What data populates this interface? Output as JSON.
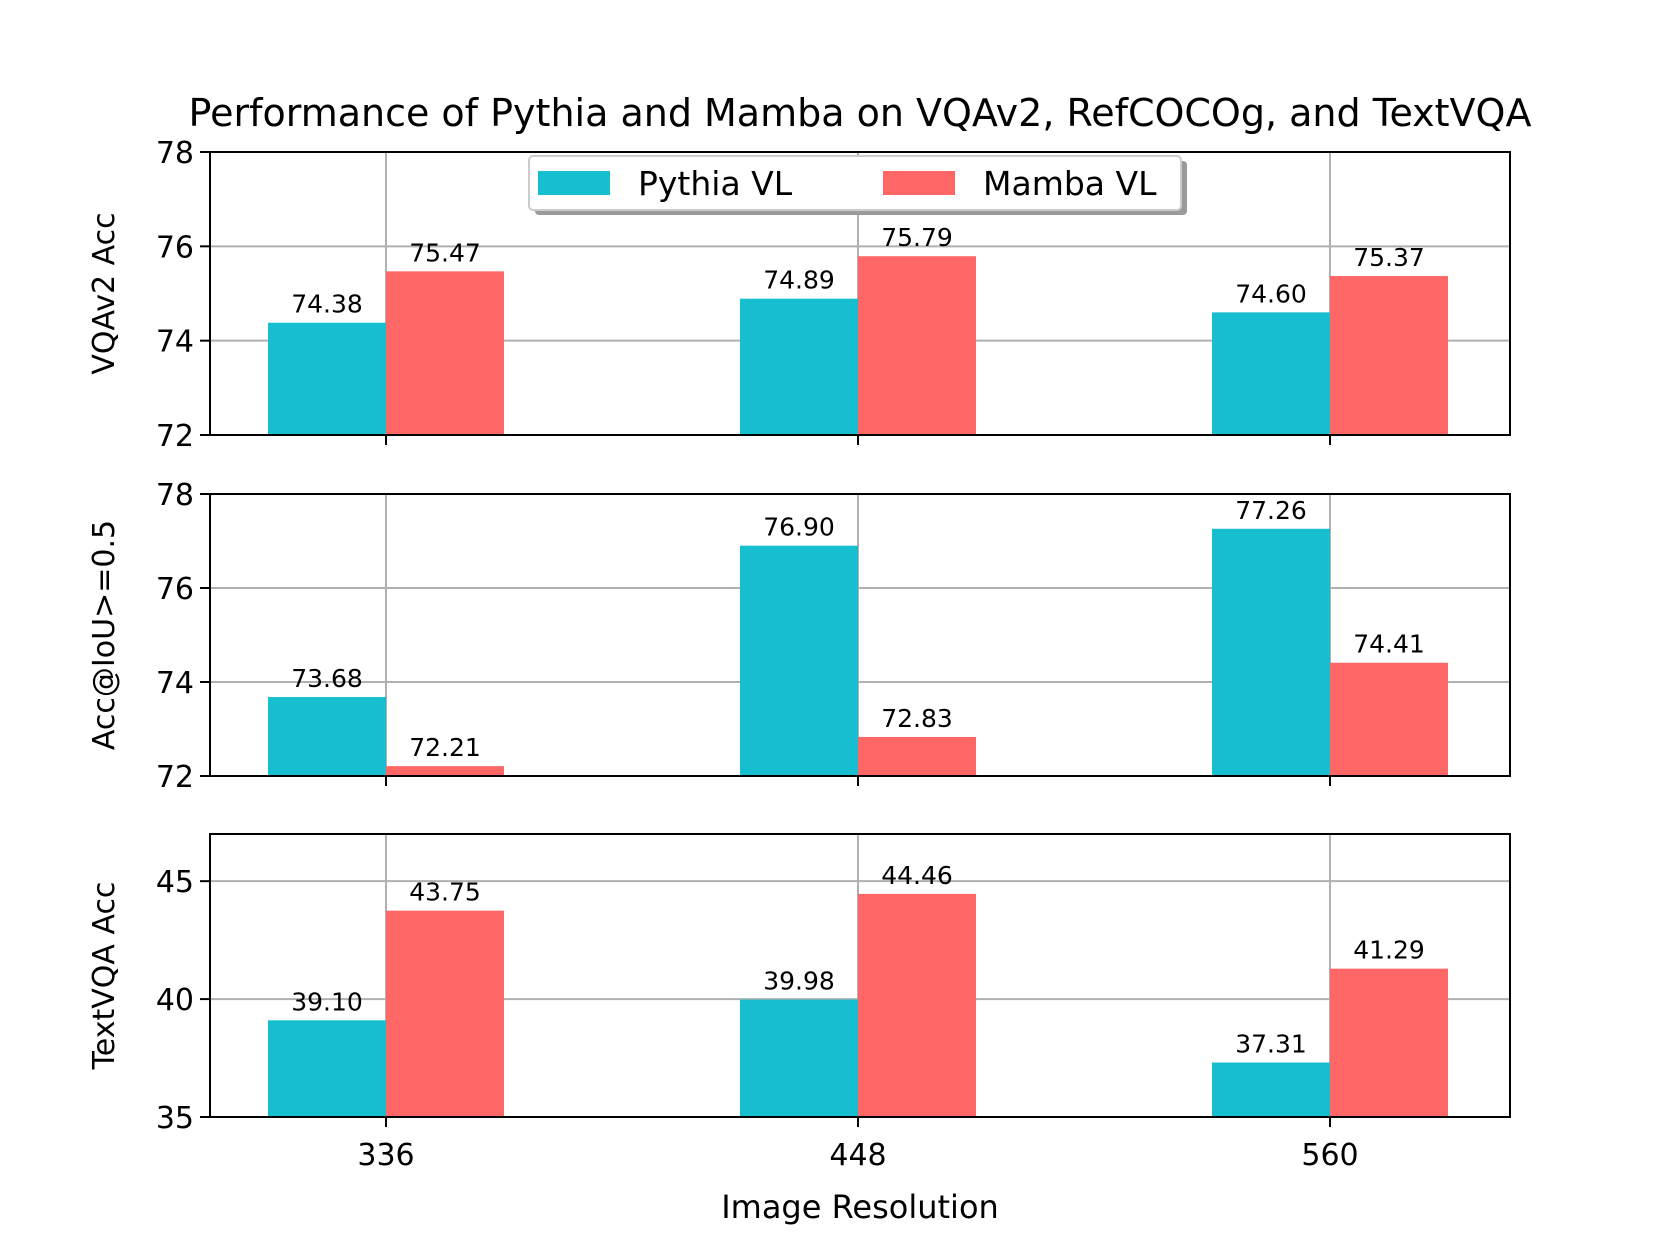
{
  "chart_data": {
    "type": "bar",
    "title": "Performance of Pythia and Mamba on VQAv2, RefCOCOg, and TextVQA",
    "xlabel": "Image Resolution",
    "categories": [
      "336",
      "448",
      "560"
    ],
    "legend": {
      "placement": "upper-center",
      "entries": [
        "Pythia VL",
        "Mamba VL"
      ]
    },
    "colors": {
      "Pythia VL": "#17becf",
      "Mamba VL": "#ff6666"
    },
    "grid": true,
    "subplots": [
      {
        "ylabel": "VQAv2 Acc",
        "ylim": [
          72,
          78
        ],
        "yticks": [
          72,
          74,
          76,
          78
        ],
        "series": [
          {
            "name": "Pythia VL",
            "values": [
              74.38,
              74.89,
              74.6
            ],
            "labels": [
              "74.38",
              "74.89",
              "74.60"
            ]
          },
          {
            "name": "Mamba VL",
            "values": [
              75.47,
              75.79,
              75.37
            ],
            "labels": [
              "75.47",
              "75.79",
              "75.37"
            ]
          }
        ]
      },
      {
        "ylabel": "Acc@IoU>=0.5",
        "ylim": [
          72,
          78
        ],
        "yticks": [
          72,
          74,
          76,
          78
        ],
        "series": [
          {
            "name": "Pythia VL",
            "values": [
              73.68,
              76.9,
              77.26
            ],
            "labels": [
              "73.68",
              "76.90",
              "77.26"
            ]
          },
          {
            "name": "Mamba VL",
            "values": [
              72.21,
              72.83,
              74.41
            ],
            "labels": [
              "72.21",
              "72.83",
              "74.41"
            ]
          }
        ]
      },
      {
        "ylabel": "TextVQA Acc",
        "ylim": [
          35,
          47
        ],
        "yticks": [
          35,
          40,
          45
        ],
        "series": [
          {
            "name": "Pythia VL",
            "values": [
              39.1,
              39.98,
              37.31
            ],
            "labels": [
              "39.10",
              "39.98",
              "37.31"
            ]
          },
          {
            "name": "Mamba VL",
            "values": [
              43.75,
              44.46,
              41.29
            ],
            "labels": [
              "43.75",
              "44.46",
              "41.29"
            ]
          }
        ]
      }
    ]
  }
}
